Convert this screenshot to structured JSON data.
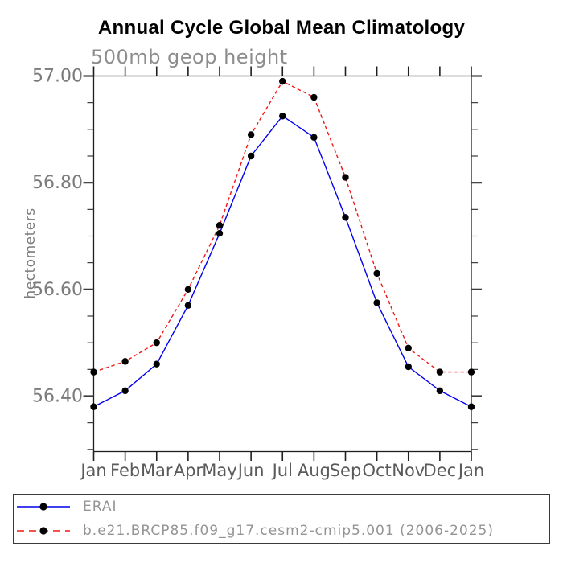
{
  "chart": {
    "title": "Annual Cycle Global Mean Climatology",
    "subtitle": "500mb geop height",
    "ylabel": "hectometers"
  },
  "chart_data": {
    "type": "line",
    "title": "Annual Cycle Global Mean Climatology",
    "subtitle": "500mb geop height",
    "xlabel": "",
    "ylabel": "hectometers",
    "categories": [
      "Jan",
      "Feb",
      "Mar",
      "Apr",
      "May",
      "Jun",
      "Jul",
      "Aug",
      "Sep",
      "Oct",
      "Nov",
      "Dec",
      "Jan"
    ],
    "series": [
      {
        "name": "ERAI",
        "color": "#0000ee",
        "line_style": "solid",
        "marker": "filled-circle",
        "marker_color": "#000000",
        "values": [
          56.38,
          56.41,
          56.46,
          56.57,
          56.705,
          56.85,
          56.925,
          56.885,
          56.735,
          56.575,
          56.455,
          56.41,
          56.38
        ]
      },
      {
        "name": "b.e21.BRCP85.f09_g17.cesm2-cmip5.001 (2006-2025)",
        "color": "#f01816",
        "line_style": "dashed",
        "marker": "filled-circle",
        "marker_color": "#000000",
        "values": [
          56.445,
          56.465,
          56.5,
          56.6,
          56.72,
          56.89,
          56.99,
          56.96,
          56.81,
          56.63,
          56.49,
          56.445,
          56.445
        ]
      }
    ],
    "y_ticks_major": [
      57.0,
      56.8,
      56.6,
      56.4
    ],
    "y_tick_labels": [
      "57.00",
      "56.80",
      "56.60",
      "56.40"
    ],
    "y_minor_step": 0.05,
    "ylim": [
      56.296,
      57.0
    ],
    "units": "hectometers",
    "grid": false,
    "legend_position": "bottom-box"
  }
}
